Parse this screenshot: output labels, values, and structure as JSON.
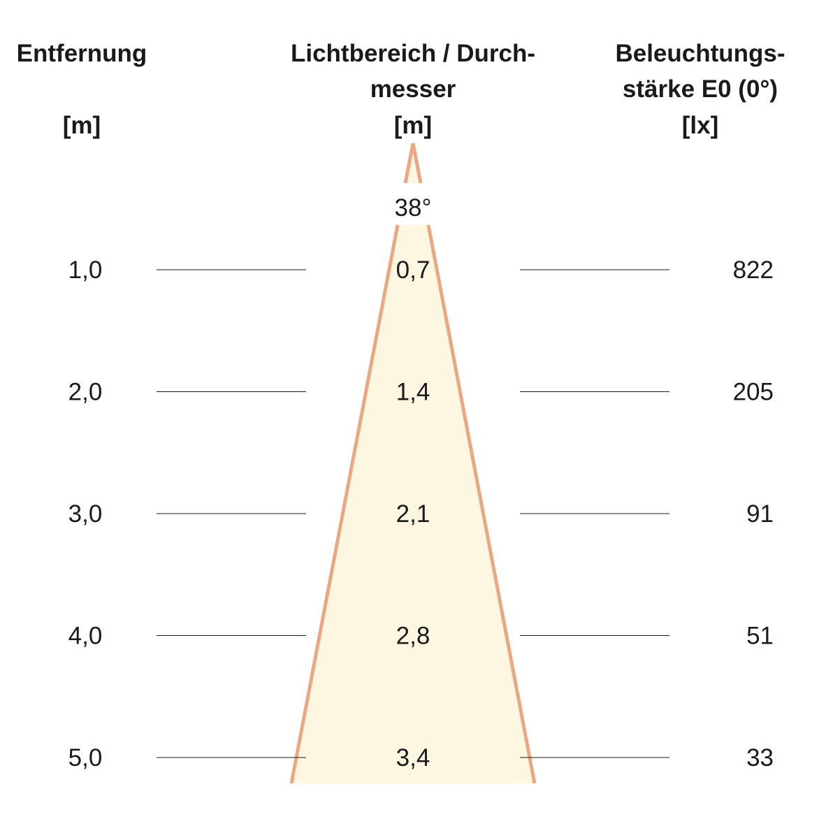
{
  "headers": {
    "distance": {
      "line1": "Entfernung",
      "unit": "[m]"
    },
    "diameter": {
      "line1": "Lichtbereich / Durch-",
      "line2": "messer",
      "unit": "[m]"
    },
    "illuminance": {
      "line1": "Beleuchtungs-",
      "line2": "stärke E0 (0°)",
      "unit": "[lx]"
    }
  },
  "beam_angle": "38°",
  "rows": [
    {
      "distance": "1,0",
      "diameter": "0,7",
      "lux": "822"
    },
    {
      "distance": "2,0",
      "diameter": "1,4",
      "lux": "205"
    },
    {
      "distance": "3,0",
      "diameter": "2,1",
      "lux": "91"
    },
    {
      "distance": "4,0",
      "diameter": "2,8",
      "lux": "51"
    },
    {
      "distance": "5,0",
      "diameter": "3,4",
      "lux": "33"
    }
  ],
  "colors": {
    "cone_stroke": "#E9A882",
    "cone_fill": "#FDF6E0",
    "line": "#1a1a1a"
  }
}
